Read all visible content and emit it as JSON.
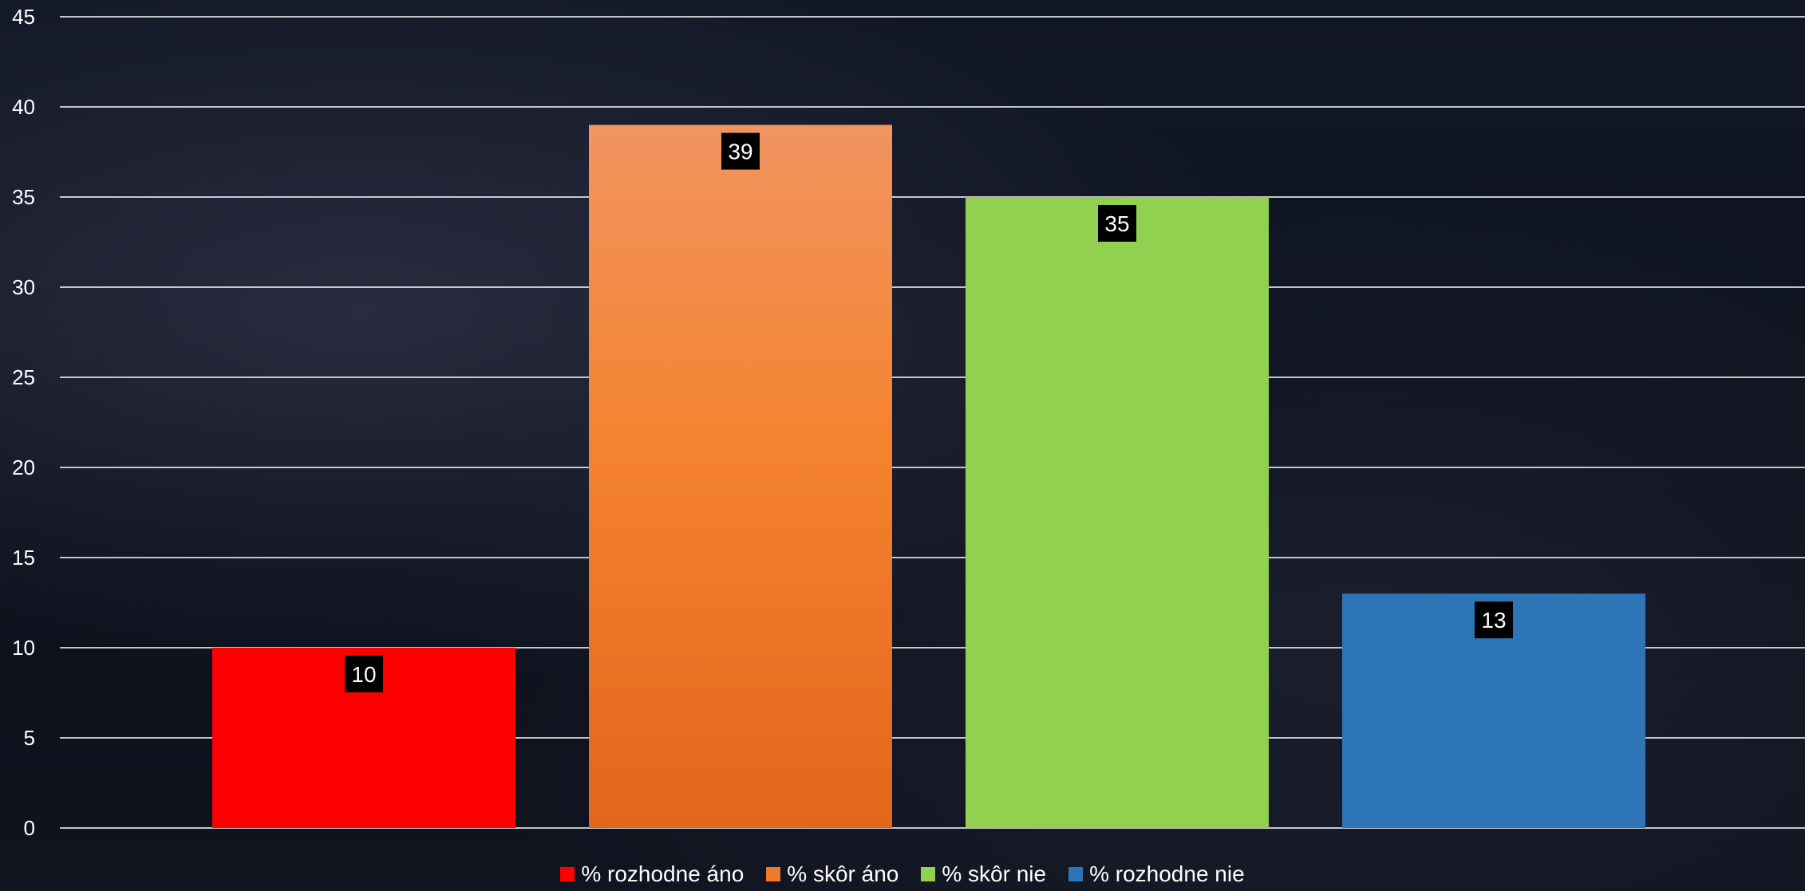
{
  "chart_data": {
    "type": "bar",
    "categories": [
      "% rozhodne áno",
      "% skôr áno",
      "% skôr nie",
      "% rozhodne nie"
    ],
    "values": [
      10,
      39,
      35,
      13
    ],
    "colors": [
      "#ff0000",
      "#ef7a2a",
      "#92d050",
      "#2e75b6"
    ],
    "title": "",
    "xlabel": "",
    "ylabel": "",
    "ylim": [
      0,
      45
    ],
    "yticks": [
      "0",
      "5",
      "10",
      "15",
      "20",
      "25",
      "30",
      "35",
      "40",
      "45"
    ],
    "grid": true,
    "legend": {
      "placement": "bottom",
      "entries": [
        "% rozhodne áno",
        "% skôr áno",
        "% skôr nie",
        "% rozhodne nie"
      ]
    }
  }
}
